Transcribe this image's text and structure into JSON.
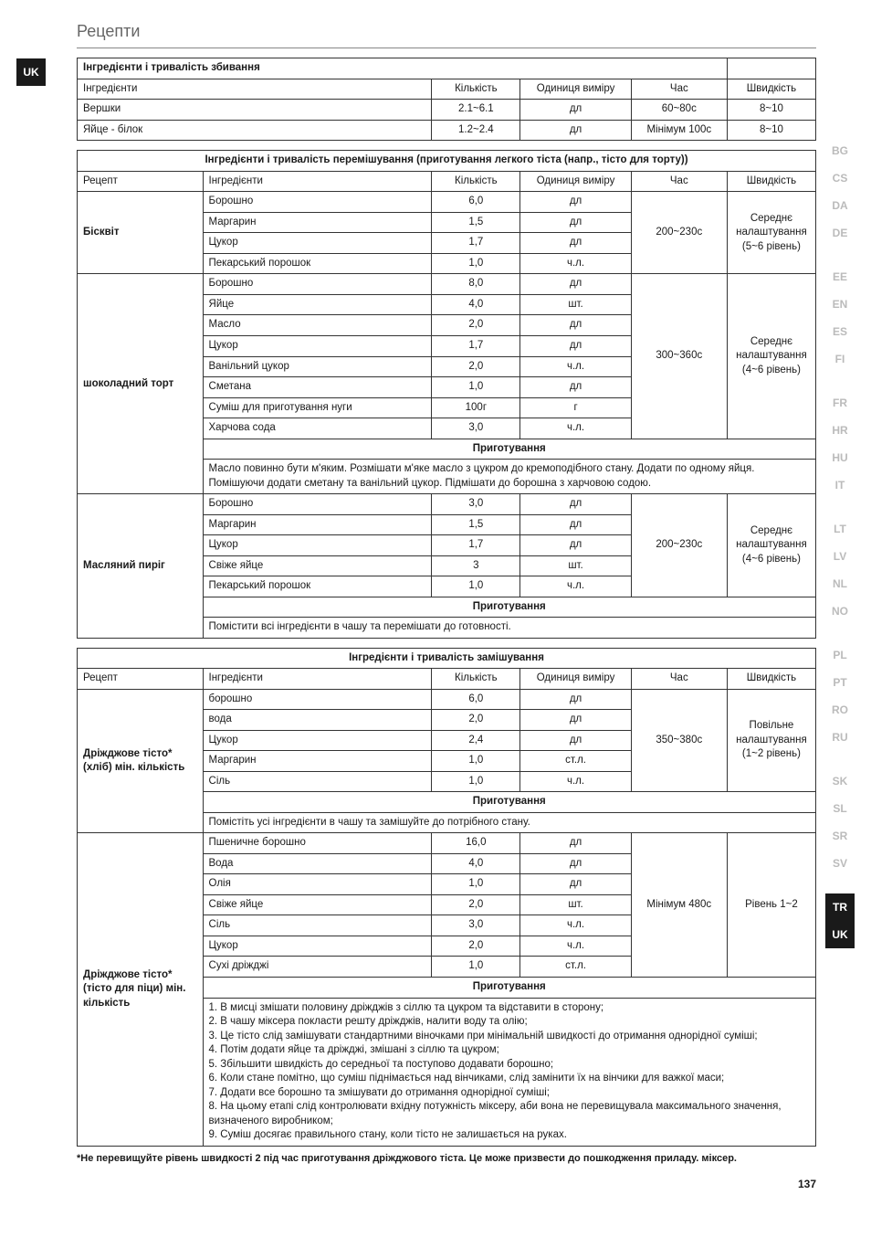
{
  "page": {
    "section_title": "Рецепти",
    "number": "137"
  },
  "footnote": "*Не перевищуйте рівень швидкості 2 під час приготування дріжджового тіста. Це може призвести до пошкодження приладу. міксер.",
  "tabs_left": [
    "UK"
  ],
  "tabs_right_groups": [
    [
      "BG",
      "CS",
      "DA",
      "DE"
    ],
    [
      "EE",
      "EN",
      "ES",
      "FI"
    ],
    [
      "FR",
      "HR",
      "HU",
      "IT"
    ],
    [
      "LT",
      "LV",
      "NL",
      "NO"
    ],
    [
      "PL",
      "PT",
      "RO",
      "RU"
    ],
    [
      "SK",
      "SL",
      "SR",
      "SV"
    ],
    [
      "TR",
      "UK"
    ]
  ],
  "tabs_right_active": [
    "TR",
    "UK"
  ],
  "labels": {
    "ingredients": "Інгредієнти",
    "qty": "Кількість",
    "unit": "Одиниця виміру",
    "time": "Час",
    "speed": "Швидкість",
    "recipe": "Рецепт",
    "prep": "Приготування"
  },
  "t1": {
    "title": "Інгредієнти і тривалість збивання",
    "rows": [
      {
        "name": "Вершки",
        "qty": "2.1~6.1",
        "unit": "дл",
        "time": "60~80с",
        "speed": "8~10"
      },
      {
        "name": "Яйце - білок",
        "qty": "1.2~2.4",
        "unit": "дл",
        "time": "Мінімум 100с",
        "speed": "8~10"
      }
    ]
  },
  "t2": {
    "title": "Інгредієнти і тривалість перемішування (приготування легкого тіста (напр., тісто для торту))",
    "groups": [
      {
        "recipe": "Бісквіт",
        "time": "200~230с",
        "speed": "Середнє налаштування\n(5~6 рівень)",
        "rows": [
          {
            "name": "Борошно",
            "qty": "6,0",
            "unit": "дл"
          },
          {
            "name": "Маргарин",
            "qty": "1,5",
            "unit": "дл"
          },
          {
            "name": "Цукор",
            "qty": "1,7",
            "unit": "дл"
          },
          {
            "name": "Пекарський порошок",
            "qty": "1,0",
            "unit": "ч.л."
          }
        ]
      },
      {
        "recipe": "шоколадний торт",
        "time": "300~360с",
        "speed": "Середнє налаштування\n(4~6 рівень)",
        "rows": [
          {
            "name": "Борошно",
            "qty": "8,0",
            "unit": "дл"
          },
          {
            "name": "Яйце",
            "qty": "4,0",
            "unit": "шт."
          },
          {
            "name": "Масло",
            "qty": "2,0",
            "unit": "дл"
          },
          {
            "name": "Цукор",
            "qty": "1,7",
            "unit": "дл"
          },
          {
            "name": "Ванільний цукор",
            "qty": "2,0",
            "unit": "ч.л."
          },
          {
            "name": "Сметана",
            "qty": "1,0",
            "unit": "дл"
          },
          {
            "name": "Суміш для приготування нуги",
            "qty": "100г",
            "unit": "г"
          },
          {
            "name": "Харчова сода",
            "qty": "3,0",
            "unit": "ч.л."
          }
        ],
        "prep_text": "Масло повинно бути м'яким. Розмішати м'яке масло з цукром до кремоподібного стану. Додати по одному яйця. Помішуючи додати сметану та ванільний цукор. Підмішати до борошна з харчовою содою."
      },
      {
        "recipe": "Масляний пиріг",
        "time": "200~230с",
        "speed": "Середнє налаштування\n(4~6 рівень)",
        "rows": [
          {
            "name": "Борошно",
            "qty": "3,0",
            "unit": "дл"
          },
          {
            "name": "Маргарин",
            "qty": "1,5",
            "unit": "дл"
          },
          {
            "name": "Цукор",
            "qty": "1,7",
            "unit": "дл"
          },
          {
            "name": "Свіже яйце",
            "qty": "3",
            "unit": "шт."
          },
          {
            "name": "Пекарський порошок",
            "qty": "1,0",
            "unit": "ч.л."
          }
        ],
        "prep_text": "Помістити всі інгредієнти в чашу та перемішати до готовності."
      }
    ]
  },
  "t3": {
    "title": "Інгредієнти і тривалість замішування",
    "groups": [
      {
        "recipe": "Дріжджове тісто* (хліб) мін. кількість",
        "time": "350~380с",
        "speed": "Повільне налаштування\n(1~2 рівень)",
        "rows": [
          {
            "name": "борошно",
            "qty": "6,0",
            "unit": "дл"
          },
          {
            "name": "вода",
            "qty": "2,0",
            "unit": "дл"
          },
          {
            "name": "Цукор",
            "qty": "2,4",
            "unit": "дл"
          },
          {
            "name": "Маргарин",
            "qty": "1,0",
            "unit": "ст.л."
          },
          {
            "name": "Сіль",
            "qty": "1,0",
            "unit": "ч.л."
          }
        ],
        "prep_text": "Помістіть усі інгредієнти в чашу та замішуйте до потрібного стану."
      },
      {
        "recipe": "Дріжджове тісто* (тісто для піци) мін. кількість",
        "time": "Мінімум 480с",
        "speed": "Рівень 1~2",
        "rows": [
          {
            "name": "Пшеничне борошно",
            "qty": "16,0",
            "unit": "дл"
          },
          {
            "name": "Вода",
            "qty": "4,0",
            "unit": "дл"
          },
          {
            "name": "Олія",
            "qty": "1,0",
            "unit": "дл"
          },
          {
            "name": "Свіже яйце",
            "qty": "2,0",
            "unit": "шт."
          },
          {
            "name": "Сіль",
            "qty": "3,0",
            "unit": "ч.л."
          },
          {
            "name": "Цукор",
            "qty": "2,0",
            "unit": "ч.л."
          },
          {
            "name": "Сухі дріжджі",
            "qty": "1,0",
            "unit": "ст.л."
          }
        ],
        "prep_lines": [
          "1. В мисці змішати половину дріжджів з сіллю та цукром та відставити в сторону;",
          "2. В чашу міксера покласти решту дріжджів, налити воду та олію;",
          "3. Це тісто слід замішувати стандартними віночками при мінімальній швидкості до отримання однорідної суміші;",
          "4. Потім додати яйце та дріжджі, змішані з сіллю та цукром;",
          "5. Збільшити швидкість до середньої та поступово додавати борошно;",
          "6. Коли стане помітно, що суміш піднімається над вінчиками, слід замінити їх на вінчики для важкої маси;",
          "7. Додати все борошно та змішувати до отримання однорідної суміші;",
          "8. На цьому етапі слід контролювати вхідну потужність міксеру, аби вона не перевищувала максимального значення, визначеного виробником;",
          "9. Суміш досягає правильного стану, коли тісто не залишається на руках."
        ]
      }
    ]
  },
  "colwidths": {
    "c0": "17%",
    "c1": "31%",
    "c2": "12%",
    "c3": "15%",
    "c4": "13%",
    "c5": "22%"
  }
}
